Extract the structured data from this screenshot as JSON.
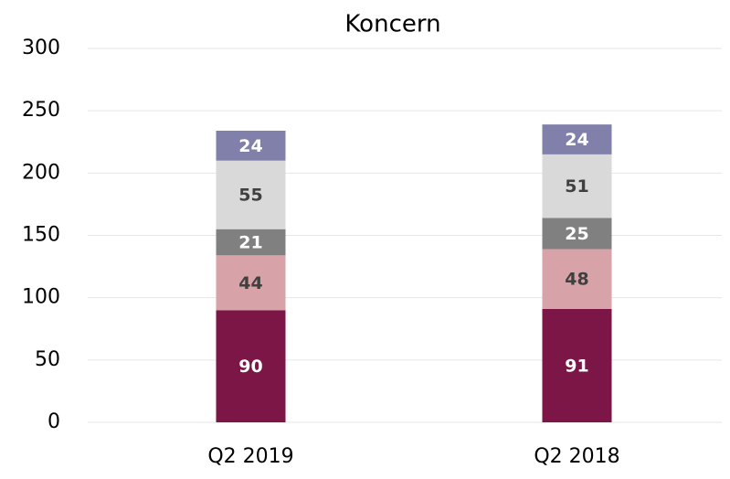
{
  "chart_data": {
    "type": "stacked_bar",
    "title": "Koncern",
    "categories": [
      "Q2 2019",
      "Q2 2018"
    ],
    "series": [
      {
        "color": "#7b1646",
        "values": [
          90,
          91
        ]
      },
      {
        "color": "#d8a3a8",
        "values": [
          44,
          48
        ]
      },
      {
        "color": "#808080",
        "values": [
          21,
          25
        ]
      },
      {
        "color": "#d9d9d9",
        "values": [
          55,
          51
        ]
      },
      {
        "color": "#8080aa",
        "values": [
          24,
          24
        ]
      }
    ],
    "ylim": [
      0,
      300
    ],
    "yticks": [
      0,
      50,
      100,
      150,
      200,
      250,
      300
    ],
    "grid": true
  }
}
